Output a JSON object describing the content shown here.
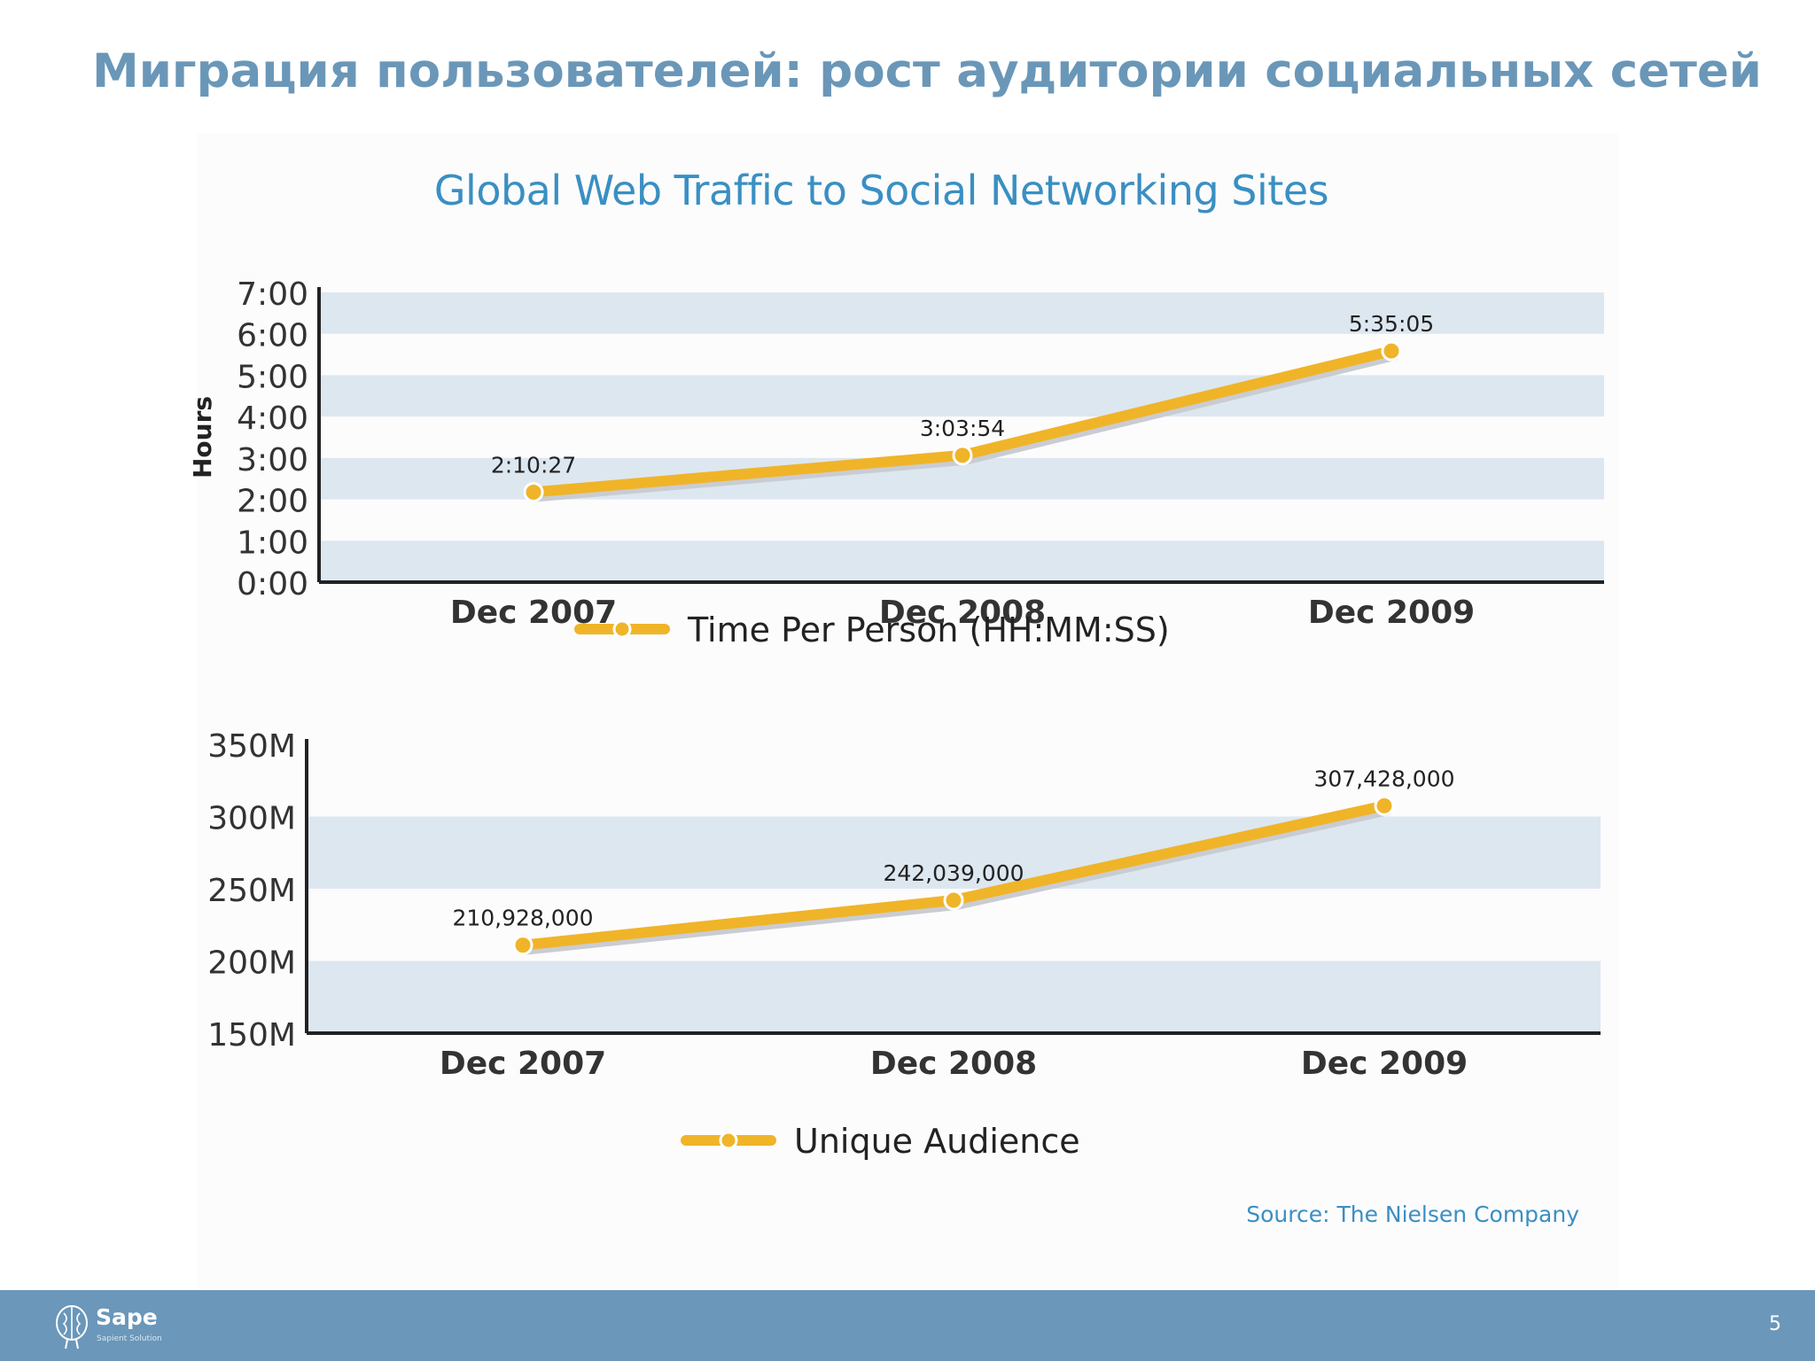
{
  "slide": {
    "title": "Миграция пользователей: рост аудитории социальных сетей",
    "figure_title": "Global Web Traffic to Social Networking Sites",
    "source": "Source: The Nielsen Company",
    "page_number": "5"
  },
  "footer": {
    "brand_name": "Sape",
    "brand_sub": "Sapient Solution"
  },
  "colors": {
    "title": "#6a97b8",
    "figure_title": "#3a8fc2",
    "band": "#dde7f0",
    "line": "#f0b429",
    "footer": "#6a97ba"
  },
  "chart_data": [
    {
      "type": "line",
      "categories": [
        "Dec 2007",
        "Dec 2008",
        "Dec 2009"
      ],
      "series": [
        {
          "name": "Time Per Person (HH:MM:SS)",
          "values": [
            2.174,
            3.065,
            5.585
          ],
          "labels": [
            "2:10:27",
            "3:03:54",
            "5:35:05"
          ]
        }
      ],
      "ylabel": "Hours",
      "ylim": [
        0,
        7
      ],
      "yticks": [
        "0:00",
        "1:00",
        "2:00",
        "3:00",
        "4:00",
        "5:00",
        "6:00",
        "7:00"
      ],
      "grid": "alternating horizontal bands",
      "legend": "bottom-center"
    },
    {
      "type": "line",
      "categories": [
        "Dec 2007",
        "Dec 2008",
        "Dec 2009"
      ],
      "series": [
        {
          "name": "Unique Audience",
          "values": [
            210928000,
            242039000,
            307428000
          ],
          "labels": [
            "210,928,000",
            "242,039,000",
            "307,428,000"
          ]
        }
      ],
      "ylim": [
        150000000,
        350000000
      ],
      "yticks": [
        "150M",
        "200M",
        "250M",
        "300M",
        "350M"
      ],
      "grid": "alternating horizontal bands",
      "legend": "bottom-center"
    }
  ]
}
